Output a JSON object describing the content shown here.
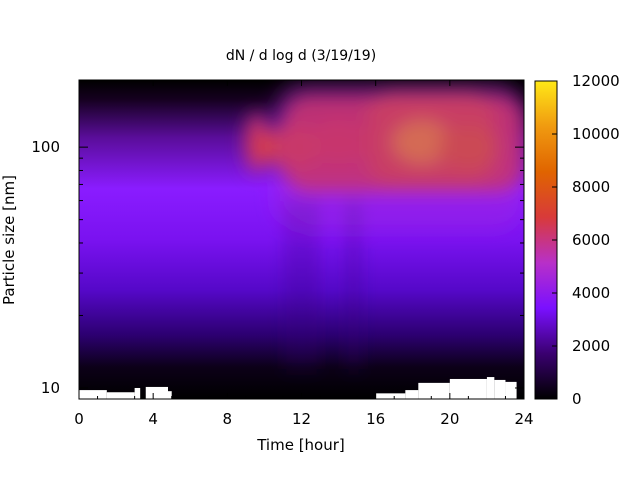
{
  "chart_data": {
    "type": "heatmap",
    "title": "dN / d log d (3/19/19)",
    "xlabel": "Time [hour]",
    "ylabel": "Particle size [nm]",
    "xlim": [
      0,
      24
    ],
    "x_ticks": [
      0,
      4,
      8,
      12,
      16,
      20,
      24
    ],
    "y_scale": "log",
    "ylim": [
      9,
      190
    ],
    "y_ticks": [
      {
        "value": 10,
        "label": "10"
      },
      {
        "value": 100,
        "label": "100"
      }
    ],
    "colorbar": {
      "range": [
        0,
        12000
      ],
      "ticks": [
        0,
        2000,
        4000,
        6000,
        8000,
        10000,
        12000
      ],
      "colormap": [
        "#000000",
        "#3a0070",
        "#7a10ff",
        "#b830c8",
        "#d83a3a",
        "#e06400",
        "#f09a10",
        "#ffe817"
      ]
    },
    "grid": false,
    "value_units": "dN/dlogd",
    "hot_spots": [
      {
        "time": 9.5,
        "size": 103,
        "value": 6500
      },
      {
        "time": 11.5,
        "size": 100,
        "value": 7200
      },
      {
        "time": 14.0,
        "size": 105,
        "value": 7000
      },
      {
        "time": 18.5,
        "size": 105,
        "value": 10000
      },
      {
        "time": 21.0,
        "size": 100,
        "value": 8200
      }
    ],
    "data_gap_regions": "white patches near 10 nm from 0-5 h and 16-24 h"
  }
}
